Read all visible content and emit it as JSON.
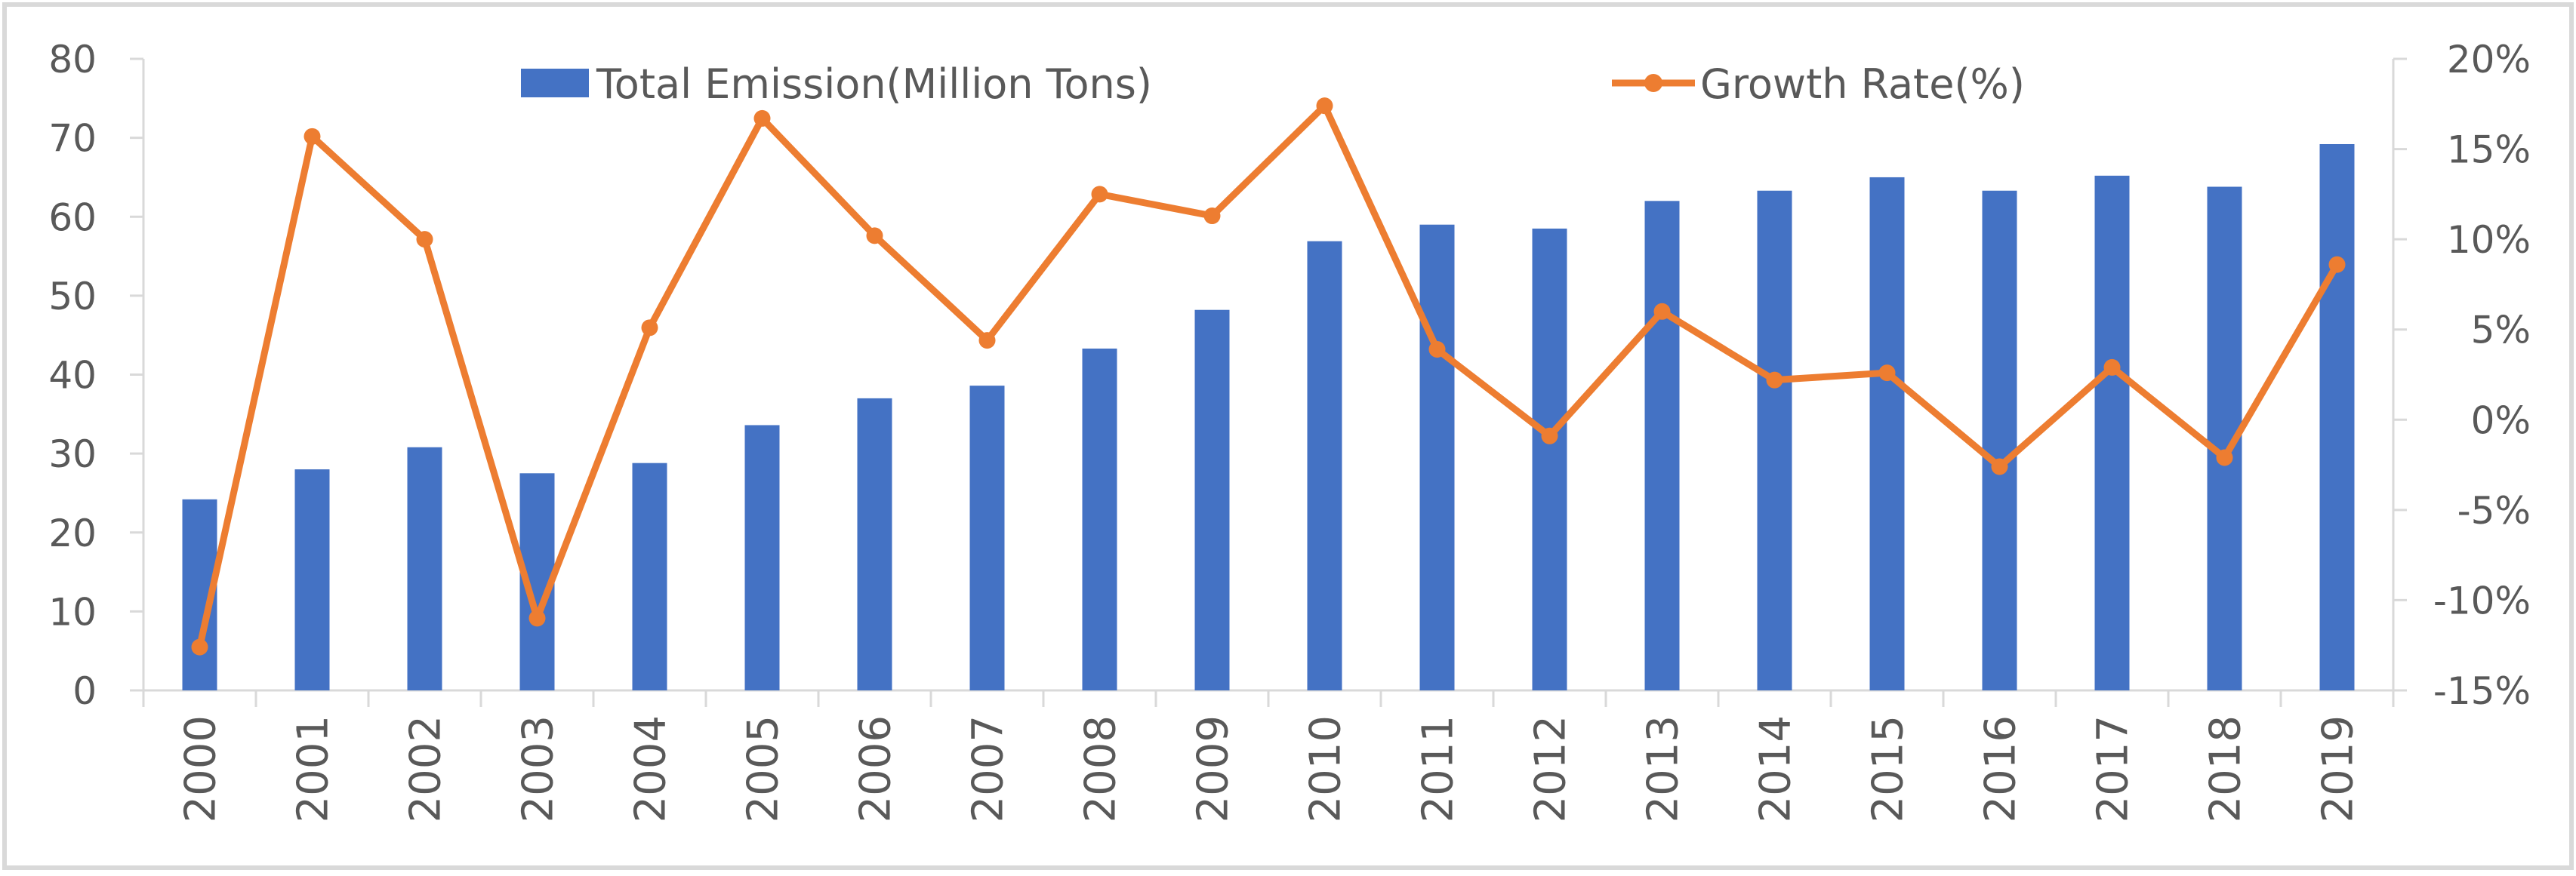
{
  "chart_data": {
    "type": "bar+line",
    "title": "",
    "xlabel": "",
    "ylabel": "",
    "categories": [
      "2000",
      "2001",
      "2002",
      "2003",
      "2004",
      "2005",
      "2006",
      "2007",
      "2008",
      "2009",
      "2010",
      "2011",
      "2012",
      "2013",
      "2014",
      "2015",
      "2016",
      "2017",
      "2018",
      "2019"
    ],
    "series": [
      {
        "name": "Total Emission(Million Tons)",
        "type": "bar",
        "axis": "left",
        "color": "#4472C4",
        "values": [
          24.2,
          28.0,
          30.8,
          27.5,
          28.8,
          33.6,
          37.0,
          38.6,
          43.3,
          48.2,
          56.9,
          59.0,
          58.5,
          62.0,
          63.3,
          65.0,
          63.3,
          65.2,
          63.8,
          69.2
        ]
      },
      {
        "name": "Growth Rate(%)",
        "type": "line",
        "axis": "right",
        "color": "#ED7D31",
        "values": [
          -12.6,
          15.7,
          10.0,
          -11.0,
          5.1,
          16.7,
          10.2,
          4.4,
          12.5,
          11.3,
          17.4,
          3.9,
          -0.9,
          6.0,
          2.2,
          2.6,
          -2.6,
          2.9,
          -2.1,
          8.6
        ]
      }
    ],
    "y_left": {
      "min": 0,
      "max": 80,
      "step": 10,
      "tick_labels": [
        "0",
        "10",
        "20",
        "30",
        "40",
        "50",
        "60",
        "70",
        "80"
      ]
    },
    "y_right": {
      "min": -15,
      "max": 20,
      "step": 5,
      "tick_labels": [
        "-15%",
        "-10%",
        "-5%",
        "0%",
        "5%",
        "10%",
        "15%",
        "20%"
      ]
    },
    "grid": false,
    "legend": "top"
  }
}
